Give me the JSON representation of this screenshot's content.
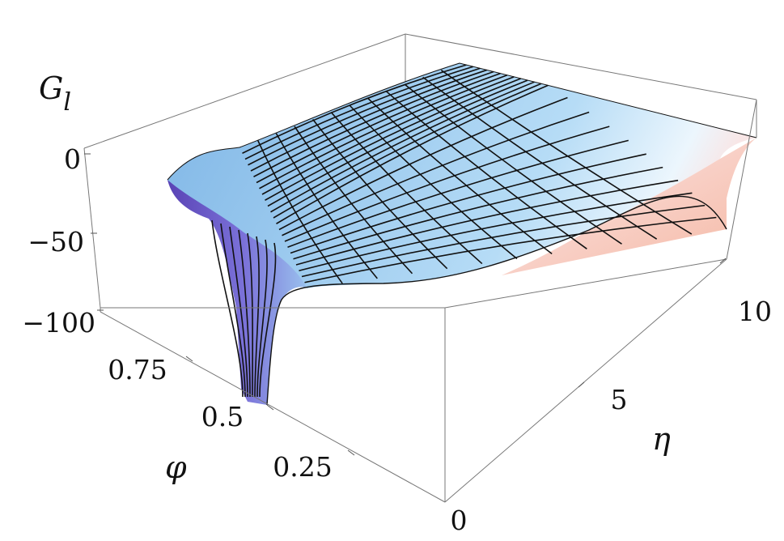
{
  "chart_data": {
    "type": "surface3d",
    "title": "",
    "xlabel": "η",
    "ylabel": "φ",
    "zlabel": "G",
    "zlabel_subscript": "l",
    "x_axis": {
      "name": "η",
      "range": [
        0,
        10
      ],
      "ticks": [
        "0",
        "5",
        "10"
      ]
    },
    "y_axis": {
      "name": "φ",
      "range": [
        0,
        1
      ],
      "ticks": [
        "0.25",
        "0.5",
        "0.75"
      ]
    },
    "z_axis": {
      "name": "G_l",
      "range": [
        -100,
        10
      ],
      "ticks": [
        "0",
        "−50",
        "−100"
      ]
    },
    "mesh": {
      "eta_lines": 12,
      "phi_lines": 24
    },
    "surface_samples": [
      {
        "eta": 0,
        "phi": 1.0,
        "G": -5
      },
      {
        "eta": 0,
        "phi": 0.75,
        "G": -35
      },
      {
        "eta": 0,
        "phi": 0.55,
        "G": -100
      },
      {
        "eta": 0,
        "phi": 0.25,
        "G": -50
      },
      {
        "eta": 0,
        "phi": 0.0,
        "G": -30
      },
      {
        "eta": 5,
        "phi": 1.0,
        "G": 5
      },
      {
        "eta": 5,
        "phi": 0.5,
        "G": -10
      },
      {
        "eta": 5,
        "phi": 0.0,
        "G": -40
      },
      {
        "eta": 10,
        "phi": 1.0,
        "G": 10
      },
      {
        "eta": 10,
        "phi": 0.5,
        "G": -15
      },
      {
        "eta": 10,
        "phi": 0.0,
        "G": -40
      }
    ],
    "colors": {
      "low": "#5a43b5",
      "mid": "#7fb6e6",
      "high": "#ecf6fd",
      "warm": "#f5b8a3",
      "mesh": "#111111",
      "box": "#777777"
    },
    "grid": false,
    "legend": "none"
  }
}
